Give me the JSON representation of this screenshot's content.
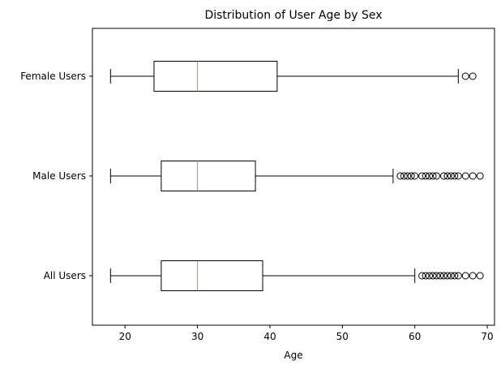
{
  "chart_data": {
    "type": "boxplot",
    "orientation": "horizontal",
    "title": "Distribution of User Age by Sex",
    "xlabel": "Age",
    "ylabel": "",
    "xlim": [
      15.5,
      71
    ],
    "xticks": [
      20,
      30,
      40,
      50,
      60,
      70
    ],
    "grid": false,
    "categories": [
      "All Users",
      "Male Users",
      "Female Users"
    ],
    "series": [
      {
        "name": "All Users",
        "whisker_low": 18,
        "q1": 25,
        "median": 30,
        "q3": 39,
        "whisker_high": 60,
        "outliers": [
          61,
          61.5,
          62,
          62.5,
          63,
          63.5,
          64,
          64.5,
          65,
          65.5,
          66,
          67,
          68,
          69
        ]
      },
      {
        "name": "Male Users",
        "whisker_low": 18,
        "q1": 25,
        "median": 30,
        "q3": 38,
        "whisker_high": 57,
        "outliers": [
          58,
          58.5,
          59,
          59.5,
          60,
          61,
          61.5,
          62,
          62.5,
          63,
          64,
          64.5,
          65,
          65.5,
          66,
          67,
          68,
          69
        ]
      },
      {
        "name": "Female Users",
        "whisker_low": 18,
        "q1": 24,
        "median": 30,
        "q3": 41,
        "whisker_high": 66,
        "outliers": [
          67,
          68
        ]
      }
    ],
    "colors": {
      "box": "#000000",
      "median": "#ff7f0e",
      "outlier": "#000000"
    }
  }
}
